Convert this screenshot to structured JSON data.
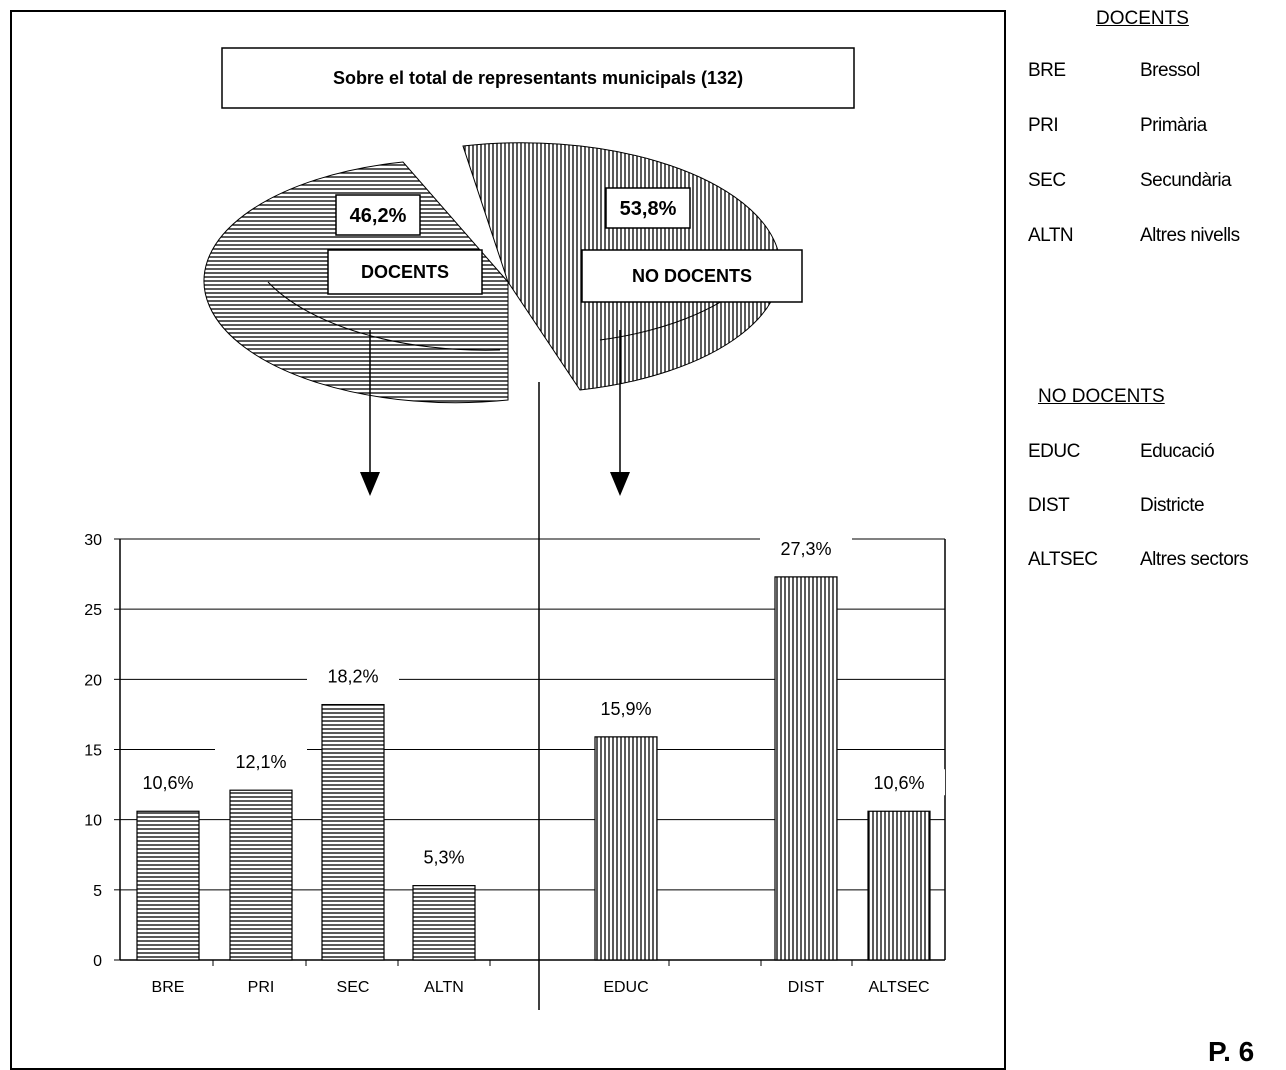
{
  "chart_data": {
    "title": "Sobre el total de representants municipals (132)",
    "pie": {
      "type": "pie",
      "slices": [
        {
          "label": "DOCENTS",
          "value": 46.2,
          "value_label": "46,2%"
        },
        {
          "label": "NO DOCENTS",
          "value": 53.8,
          "value_label": "53,8%"
        }
      ]
    },
    "bar": {
      "type": "bar",
      "ylim": [
        0,
        30
      ],
      "yticks": [
        "0",
        "5",
        "10",
        "15",
        "20",
        "25",
        "30"
      ],
      "groups": [
        {
          "name": "DOCENTS",
          "categories": [
            "BRE",
            "PRI",
            "SEC",
            "ALTN"
          ],
          "values": [
            10.6,
            12.1,
            18.2,
            5.3
          ],
          "value_labels": [
            "10,6%",
            "12,1%",
            "18,2%",
            "5,3%"
          ]
        },
        {
          "name": "NO DOCENTS",
          "categories": [
            "EDUC",
            "DIST",
            "ALTSEC"
          ],
          "values": [
            15.9,
            27.3,
            10.6
          ],
          "value_labels": [
            "15,9%",
            "27,3%",
            "10,6%"
          ]
        }
      ],
      "grid": true
    }
  },
  "legend": {
    "docents": {
      "title": "DOCENTS",
      "items": [
        {
          "code": "BRE",
          "desc": "Bressol"
        },
        {
          "code": "PRI",
          "desc": "Primària"
        },
        {
          "code": "SEC",
          "desc": "Secundària"
        },
        {
          "code": "ALTN",
          "desc": "Altres nivells"
        }
      ]
    },
    "no_docents": {
      "title": "NO DOCENTS",
      "items": [
        {
          "code": "EDUC",
          "desc": "Educació"
        },
        {
          "code": "DIST",
          "desc": "Districte"
        },
        {
          "code": "ALTSEC",
          "desc": "Altres sectors"
        }
      ]
    }
  },
  "page_number": "P. 6"
}
